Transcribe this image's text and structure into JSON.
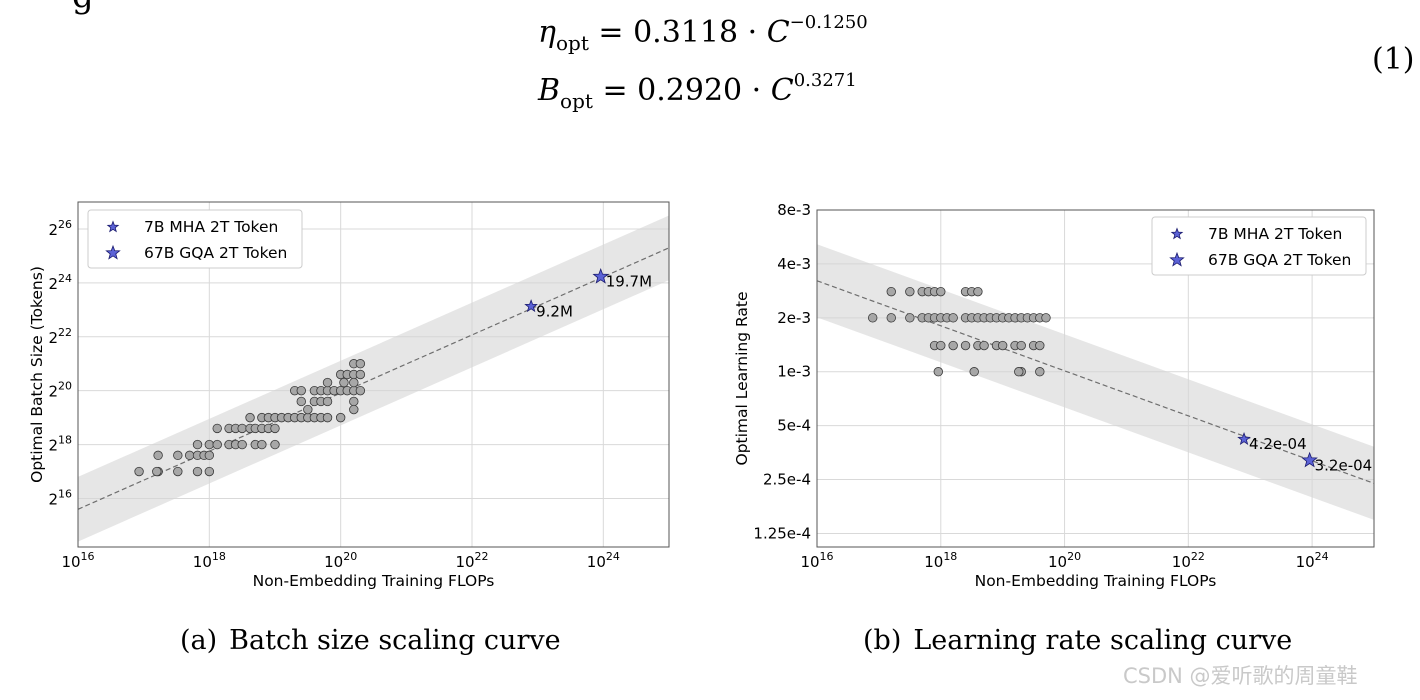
{
  "equation": {
    "partial_top_glyph": "g",
    "eta_symbol": "η",
    "eta_sub": "opt",
    "eta_rhs": "= 0.3118 · ",
    "eta_base": "C",
    "eta_exp": "−0.1250",
    "b_symbol": "B",
    "b_sub": "opt",
    "b_rhs": "= 0.2920 · ",
    "b_base": "C",
    "b_exp": "0.3271",
    "number": "(1)"
  },
  "chart_data": [
    {
      "type": "scatter",
      "id": "batch",
      "xscale": "log10",
      "yscale": "log2",
      "xlim_exp": [
        16,
        25
      ],
      "ylim_exp": [
        14.2,
        27.0
      ],
      "x_ticks": [
        {
          "base": "10",
          "exp": "16",
          "e": 16
        },
        {
          "base": "10",
          "exp": "18",
          "e": 18
        },
        {
          "base": "10",
          "exp": "20",
          "e": 20
        },
        {
          "base": "10",
          "exp": "22",
          "e": 22
        },
        {
          "base": "10",
          "exp": "24",
          "e": 24
        }
      ],
      "y_ticks": [
        {
          "base": "2",
          "exp": "16",
          "e": 16
        },
        {
          "base": "2",
          "exp": "18",
          "e": 18
        },
        {
          "base": "2",
          "exp": "20",
          "e": 20
        },
        {
          "base": "2",
          "exp": "22",
          "e": 22
        },
        {
          "base": "2",
          "exp": "24",
          "e": 24
        },
        {
          "base": "2",
          "exp": "26",
          "e": 26
        }
      ],
      "xlabel": "Non-Embedding Training FLOPs",
      "ylabel": "Optimal Batch Size (Tokens)",
      "fit": {
        "x_exp": [
          16,
          25
        ],
        "y_exp": [
          15.6,
          25.3
        ]
      },
      "band_halfwidth_exp": 1.2,
      "grid": true,
      "legend": {
        "position": "top-left",
        "entries": [
          {
            "label": "7B MHA 2T Token",
            "marker": "star-small"
          },
          {
            "label": "67B GQA 2T Token",
            "marker": "star-large"
          }
        ]
      },
      "points": [
        {
          "x": 16.93,
          "y": 17.0
        },
        {
          "x": 17.22,
          "y": 17.6
        },
        {
          "x": 17.22,
          "y": 17.0
        },
        {
          "x": 17.52,
          "y": 17.6
        },
        {
          "x": 17.52,
          "y": 17.0
        },
        {
          "x": 17.7,
          "y": 17.6
        },
        {
          "x": 17.82,
          "y": 17.6
        },
        {
          "x": 17.82,
          "y": 17.0
        },
        {
          "x": 17.82,
          "y": 18.0
        },
        {
          "x": 17.92,
          "y": 17.6
        },
        {
          "x": 18.0,
          "y": 17.0
        },
        {
          "x": 18.0,
          "y": 17.6
        },
        {
          "x": 18.0,
          "y": 18.0
        },
        {
          "x": 18.12,
          "y": 18.0
        },
        {
          "x": 18.12,
          "y": 18.6
        },
        {
          "x": 18.3,
          "y": 18.0
        },
        {
          "x": 18.3,
          "y": 18.6
        },
        {
          "x": 18.4,
          "y": 18.6
        },
        {
          "x": 18.4,
          "y": 18.0
        },
        {
          "x": 18.5,
          "y": 18.6
        },
        {
          "x": 18.5,
          "y": 18.0
        },
        {
          "x": 18.62,
          "y": 18.6
        },
        {
          "x": 18.62,
          "y": 19.0
        },
        {
          "x": 18.7,
          "y": 18.6
        },
        {
          "x": 18.7,
          "y": 18.0
        },
        {
          "x": 18.8,
          "y": 18.6
        },
        {
          "x": 18.8,
          "y": 19.0
        },
        {
          "x": 18.8,
          "y": 18.0
        },
        {
          "x": 18.9,
          "y": 18.6
        },
        {
          "x": 18.9,
          "y": 19.0
        },
        {
          "x": 19.0,
          "y": 18.6
        },
        {
          "x": 19.0,
          "y": 19.0
        },
        {
          "x": 19.0,
          "y": 18.0
        },
        {
          "x": 19.1,
          "y": 19.0
        },
        {
          "x": 19.2,
          "y": 19.0
        },
        {
          "x": 19.3,
          "y": 19.0
        },
        {
          "x": 19.3,
          "y": 20.0
        },
        {
          "x": 19.4,
          "y": 19.0
        },
        {
          "x": 19.4,
          "y": 19.6
        },
        {
          "x": 19.4,
          "y": 20.0
        },
        {
          "x": 19.5,
          "y": 19.0
        },
        {
          "x": 19.5,
          "y": 19.3
        },
        {
          "x": 19.6,
          "y": 19.6
        },
        {
          "x": 19.6,
          "y": 20.0
        },
        {
          "x": 19.6,
          "y": 19.0
        },
        {
          "x": 19.7,
          "y": 19.6
        },
        {
          "x": 19.7,
          "y": 20.0
        },
        {
          "x": 19.7,
          "y": 19.0
        },
        {
          "x": 19.8,
          "y": 20.0
        },
        {
          "x": 19.8,
          "y": 20.3
        },
        {
          "x": 19.8,
          "y": 19.6
        },
        {
          "x": 19.8,
          "y": 19.0
        },
        {
          "x": 19.9,
          "y": 20.0
        },
        {
          "x": 20.0,
          "y": 20.0
        },
        {
          "x": 20.0,
          "y": 20.6
        },
        {
          "x": 20.0,
          "y": 19.0
        },
        {
          "x": 20.05,
          "y": 20.3
        },
        {
          "x": 20.1,
          "y": 20.6
        },
        {
          "x": 20.1,
          "y": 20.0
        },
        {
          "x": 20.2,
          "y": 20.6
        },
        {
          "x": 20.2,
          "y": 21.0
        },
        {
          "x": 20.2,
          "y": 20.0
        },
        {
          "x": 20.2,
          "y": 20.3
        },
        {
          "x": 20.2,
          "y": 19.6
        },
        {
          "x": 20.2,
          "y": 19.3
        },
        {
          "x": 20.3,
          "y": 21.0
        },
        {
          "x": 20.3,
          "y": 20.6
        },
        {
          "x": 20.3,
          "y": 20.0
        },
        {
          "x": 17.2,
          "y": 17.0
        }
      ],
      "stars": [
        {
          "name": "7B MHA 2T Token",
          "x": 22.9,
          "y": 23.13,
          "label": "9.2M",
          "size": "small"
        },
        {
          "name": "67B GQA 2T Token",
          "x": 23.96,
          "y": 24.23,
          "label": "19.7M",
          "size": "large"
        }
      ],
      "caption": {
        "tag": "(a)",
        "text": "Batch size scaling curve"
      }
    },
    {
      "type": "scatter",
      "id": "lr",
      "xscale": "log10",
      "yscale": "log2",
      "xlim_exp": [
        16,
        25
      ],
      "y_ticks": [
        {
          "label": "8e-3",
          "v": 0.008
        },
        {
          "label": "4e-3",
          "v": 0.004
        },
        {
          "label": "2e-3",
          "v": 0.002
        },
        {
          "label": "1e-3",
          "v": 0.001
        },
        {
          "label": "5e-4",
          "v": 0.0005
        },
        {
          "label": "2.5e-4",
          "v": 0.00025
        },
        {
          "label": "1.25e-4",
          "v": 0.000125
        }
      ],
      "ylim": [
        0.000105,
        0.008
      ],
      "x_ticks": [
        {
          "base": "10",
          "exp": "16",
          "e": 16
        },
        {
          "base": "10",
          "exp": "18",
          "e": 18
        },
        {
          "base": "10",
          "exp": "20",
          "e": 20
        },
        {
          "base": "10",
          "exp": "22",
          "e": 22
        },
        {
          "base": "10",
          "exp": "24",
          "e": 24
        }
      ],
      "xlabel": "Non-Embedding Training FLOPs",
      "ylabel": "Optimal Learning Rate",
      "fit": {
        "x_exp": [
          16,
          25
        ],
        "y": [
          0.00322,
          0.000238
        ]
      },
      "band_factor": 1.6,
      "grid": true,
      "legend": {
        "position": "top-right",
        "entries": [
          {
            "label": "7B MHA 2T Token",
            "marker": "star-small"
          },
          {
            "label": "67B GQA 2T Token",
            "marker": "star-large"
          }
        ]
      },
      "points": [
        {
          "x": 16.9,
          "y": 0.002
        },
        {
          "x": 17.2,
          "y": 0.002
        },
        {
          "x": 17.2,
          "y": 0.0028
        },
        {
          "x": 17.5,
          "y": 0.0028
        },
        {
          "x": 17.5,
          "y": 0.002
        },
        {
          "x": 17.7,
          "y": 0.0028
        },
        {
          "x": 17.7,
          "y": 0.002
        },
        {
          "x": 17.8,
          "y": 0.0028
        },
        {
          "x": 17.8,
          "y": 0.002
        },
        {
          "x": 17.9,
          "y": 0.0028
        },
        {
          "x": 17.9,
          "y": 0.002
        },
        {
          "x": 17.9,
          "y": 0.0014
        },
        {
          "x": 18.0,
          "y": 0.002
        },
        {
          "x": 18.0,
          "y": 0.0014
        },
        {
          "x": 18.0,
          "y": 0.0028
        },
        {
          "x": 18.1,
          "y": 0.002
        },
        {
          "x": 18.2,
          "y": 0.002
        },
        {
          "x": 18.2,
          "y": 0.0014
        },
        {
          "x": 17.96,
          "y": 0.001
        },
        {
          "x": 18.4,
          "y": 0.0028
        },
        {
          "x": 18.4,
          "y": 0.002
        },
        {
          "x": 18.4,
          "y": 0.0014
        },
        {
          "x": 18.5,
          "y": 0.0028
        },
        {
          "x": 18.5,
          "y": 0.002
        },
        {
          "x": 18.6,
          "y": 0.0028
        },
        {
          "x": 18.6,
          "y": 0.002
        },
        {
          "x": 18.6,
          "y": 0.0014
        },
        {
          "x": 18.7,
          "y": 0.002
        },
        {
          "x": 18.7,
          "y": 0.0014
        },
        {
          "x": 18.8,
          "y": 0.002
        },
        {
          "x": 18.9,
          "y": 0.002
        },
        {
          "x": 18.9,
          "y": 0.0014
        },
        {
          "x": 19.0,
          "y": 0.002
        },
        {
          "x": 19.0,
          "y": 0.0014
        },
        {
          "x": 19.1,
          "y": 0.002
        },
        {
          "x": 19.2,
          "y": 0.002
        },
        {
          "x": 19.2,
          "y": 0.0014
        },
        {
          "x": 19.3,
          "y": 0.002
        },
        {
          "x": 19.3,
          "y": 0.0014
        },
        {
          "x": 19.4,
          "y": 0.002
        },
        {
          "x": 19.5,
          "y": 0.002
        },
        {
          "x": 19.5,
          "y": 0.0014
        },
        {
          "x": 19.6,
          "y": 0.002
        },
        {
          "x": 19.3,
          "y": 0.001
        },
        {
          "x": 18.54,
          "y": 0.001
        },
        {
          "x": 19.6,
          "y": 0.0014
        },
        {
          "x": 19.7,
          "y": 0.002
        },
        {
          "x": 19.26,
          "y": 0.001
        },
        {
          "x": 19.6,
          "y": 0.001
        }
      ],
      "stars": [
        {
          "name": "7B MHA 2T Token",
          "x": 22.9,
          "y": 0.00042,
          "label": "4.2e-04",
          "size": "small"
        },
        {
          "name": "67B GQA 2T Token",
          "x": 23.96,
          "y": 0.00032,
          "label": "3.2e-04",
          "size": "large"
        }
      ],
      "caption": {
        "tag": "(b)",
        "text": "Learning rate scaling curve"
      }
    }
  ],
  "watermark": "CSDN @爱听歌的周童鞋"
}
